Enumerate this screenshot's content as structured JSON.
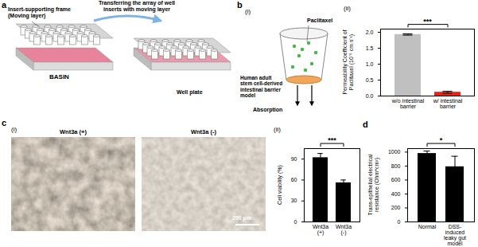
{
  "figure": {
    "a": {
      "label": "a",
      "frame_label": "Insert-supporting frame (Moving layer)",
      "arrow_label": "Transferring the array of well inserts with moving layer",
      "basin_label": "BASIN",
      "plate_label": "Well plate"
    },
    "b": {
      "label": "b",
      "i_label": "(i)",
      "ii_label": "(ii)",
      "drug_label": "Paclitaxel",
      "model_label": "Human adult stem cell-derived intestinal barrier model",
      "flow_label": "Absorption"
    },
    "c": {
      "label": "c",
      "i_label": "(i)",
      "ii_label": "(ii)",
      "image_labels": [
        "Wnt3a (+)",
        "Wnt3a (-)"
      ],
      "scale_bar": "200 μm"
    },
    "d": {
      "label": "d"
    }
  },
  "chart_data": [
    {
      "type": "bar",
      "categories": [
        "w/o intestinal barrier",
        "w/ intestinal barrier"
      ],
      "values": [
        1.93,
        0.12
      ],
      "errors": [
        0.02,
        0.03
      ],
      "colors": [
        "#c0c0c0",
        "#e5231b"
      ],
      "ylabel": "Permeability Coefficient of Paclitaxel (10⁻⁵ cm s⁻¹)",
      "ylim": [
        0,
        2.1
      ],
      "yticks": [
        {
          "value": 0,
          "label": "0.0"
        },
        0.5,
        {
          "value": 1,
          "label": "1.0"
        },
        1.5,
        {
          "value": 2,
          "label": "2.0"
        }
      ],
      "significance": "***"
    },
    {
      "type": "bar",
      "categories": [
        "Wnt3a (+)",
        "Wnt3a (-)"
      ],
      "values": [
        92,
        56
      ],
      "errors": [
        6,
        4
      ],
      "color": "#000000",
      "ylabel": "Cell viability (%)",
      "ylim": [
        0,
        105
      ],
      "yticks": [
        0,
        30,
        60,
        90
      ],
      "significance": "***"
    },
    {
      "type": "bar",
      "categories": [
        "Normal",
        "DSS-induced leaky gut model"
      ],
      "values": [
        980,
        790
      ],
      "errors": [
        35,
        150
      ],
      "color": "#000000",
      "ylabel": "Trans-epithelial electrical resistance (Ohm*cm²)",
      "ylim": [
        0,
        1050
      ],
      "yticks": [
        0,
        200,
        400,
        600,
        800,
        1000
      ],
      "significance": "*"
    }
  ]
}
